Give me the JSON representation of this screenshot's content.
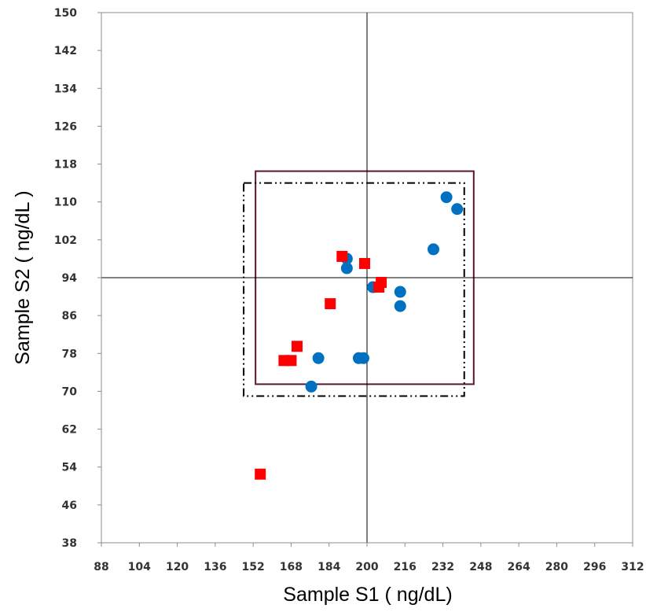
{
  "chart_data": {
    "type": "scatter",
    "title": "",
    "xlabel": "Sample S1 ( ng/dL)",
    "ylabel": "Sample S2 ( ng/dL )",
    "xlim": [
      88,
      312
    ],
    "ylim": [
      38,
      150
    ],
    "xticks": [
      "88",
      "104",
      "120",
      "136",
      "152",
      "168",
      "184",
      "200",
      "216",
      "232",
      "248",
      "264",
      "280",
      "296",
      "312"
    ],
    "yticks": [
      "38",
      "46",
      "54",
      "62",
      "70",
      "78",
      "86",
      "94",
      "102",
      "110",
      "118",
      "126",
      "134",
      "142",
      "150"
    ],
    "grid": false,
    "reference_lines": {
      "x": 200,
      "y": 94
    },
    "boxes": [
      {
        "style": "solid",
        "color": "#5b1632",
        "x": [
          153,
          245
        ],
        "y": [
          71.5,
          116.5
        ]
      },
      {
        "style": "dash-dot-dot",
        "color": "#000000",
        "x": [
          148,
          241
        ],
        "y": [
          69,
          114
        ]
      }
    ],
    "series": [
      {
        "marker": "circle",
        "color": "#0070c0",
        "points": [
          [
            191.5,
            98
          ],
          [
            191.5,
            96
          ],
          [
            202.5,
            92
          ],
          [
            214,
            91
          ],
          [
            214,
            88
          ],
          [
            196.5,
            77
          ],
          [
            198.5,
            77
          ],
          [
            179.5,
            77
          ],
          [
            176.5,
            71
          ],
          [
            228,
            100
          ],
          [
            233.5,
            111
          ],
          [
            238,
            108.5
          ]
        ]
      },
      {
        "marker": "square",
        "color": "#ff0000",
        "points": [
          [
            189.5,
            98.5
          ],
          [
            199,
            97
          ],
          [
            206,
            93
          ],
          [
            205,
            92
          ],
          [
            184.5,
            88.5
          ],
          [
            170.5,
            79.5
          ],
          [
            165,
            76.5
          ],
          [
            168,
            76.5
          ],
          [
            155,
            52.5
          ]
        ]
      }
    ]
  }
}
